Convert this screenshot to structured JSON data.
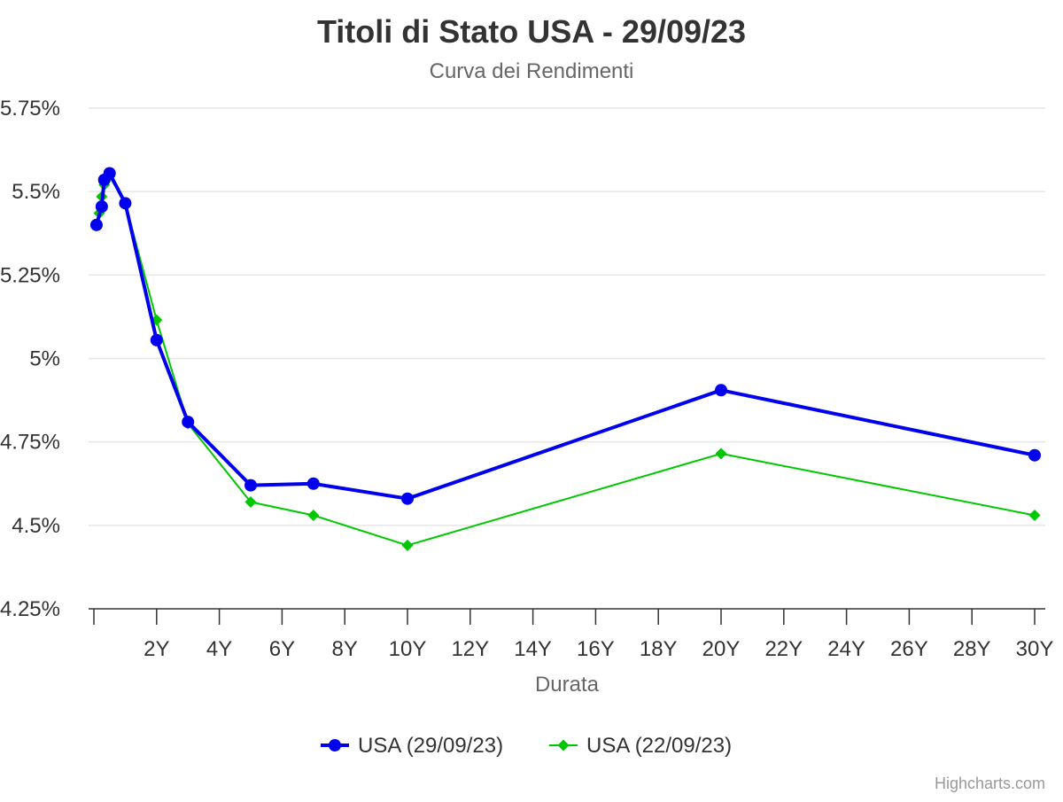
{
  "chart_data": {
    "type": "line",
    "title": "Titoli di Stato USA - 29/09/23",
    "subtitle": "Curva dei Rendimenti",
    "xlabel": "Durata",
    "ylabel": "",
    "xlim": [
      0,
      30
    ],
    "ylim": [
      4.25,
      5.75
    ],
    "x_ticks": [
      {
        "value": 2,
        "label": "2Y"
      },
      {
        "value": 4,
        "label": "4Y"
      },
      {
        "value": 6,
        "label": "6Y"
      },
      {
        "value": 8,
        "label": "8Y"
      },
      {
        "value": 10,
        "label": "10Y"
      },
      {
        "value": 12,
        "label": "12Y"
      },
      {
        "value": 14,
        "label": "14Y"
      },
      {
        "value": 16,
        "label": "16Y"
      },
      {
        "value": 18,
        "label": "18Y"
      },
      {
        "value": 20,
        "label": "20Y"
      },
      {
        "value": 22,
        "label": "22Y"
      },
      {
        "value": 24,
        "label": "24Y"
      },
      {
        "value": 26,
        "label": "26Y"
      },
      {
        "value": 28,
        "label": "28Y"
      },
      {
        "value": 30,
        "label": "30Y"
      }
    ],
    "y_ticks": [
      {
        "value": 4.25,
        "label": "4.25%"
      },
      {
        "value": 4.5,
        "label": "4.5%"
      },
      {
        "value": 4.75,
        "label": "4.75%"
      },
      {
        "value": 5.0,
        "label": "5%"
      },
      {
        "value": 5.25,
        "label": "5.25%"
      },
      {
        "value": 5.5,
        "label": "5.5%"
      },
      {
        "value": 5.75,
        "label": "5.75%"
      }
    ],
    "grid": "horizontal",
    "legend_position": "bottom-center",
    "series": [
      {
        "name": "USA (29/09/23)",
        "color": "#0000ee",
        "marker": "circle",
        "points": [
          {
            "x": 0.083,
            "y": 5.4
          },
          {
            "x": 0.25,
            "y": 5.455
          },
          {
            "x": 0.33,
            "y": 5.535
          },
          {
            "x": 0.5,
            "y": 5.555
          },
          {
            "x": 1,
            "y": 5.465
          },
          {
            "x": 2,
            "y": 5.055
          },
          {
            "x": 3,
            "y": 4.81
          },
          {
            "x": 5,
            "y": 4.62
          },
          {
            "x": 7,
            "y": 4.625
          },
          {
            "x": 10,
            "y": 4.58
          },
          {
            "x": 20,
            "y": 4.905
          },
          {
            "x": 30,
            "y": 4.71
          }
        ]
      },
      {
        "name": "USA (22/09/23)",
        "color": "#00c800",
        "marker": "diamond",
        "points": [
          {
            "x": 0.083,
            "y": 5.4
          },
          {
            "x": 0.17,
            "y": 5.435
          },
          {
            "x": 0.25,
            "y": 5.485
          },
          {
            "x": 0.33,
            "y": 5.52
          },
          {
            "x": 0.5,
            "y": 5.545
          },
          {
            "x": 1,
            "y": 5.465
          },
          {
            "x": 2,
            "y": 5.115
          },
          {
            "x": 3,
            "y": 4.805
          },
          {
            "x": 5,
            "y": 4.57
          },
          {
            "x": 7,
            "y": 4.53
          },
          {
            "x": 10,
            "y": 4.44
          },
          {
            "x": 20,
            "y": 4.715
          },
          {
            "x": 30,
            "y": 4.53
          }
        ]
      }
    ]
  },
  "credits": "Highcharts.com",
  "colors": {
    "title": "#333333",
    "subtitle": "#666666",
    "axis_text": "#333333",
    "grid": "#e6e6e6",
    "axis_line": "#333333",
    "credits": "#999999"
  }
}
